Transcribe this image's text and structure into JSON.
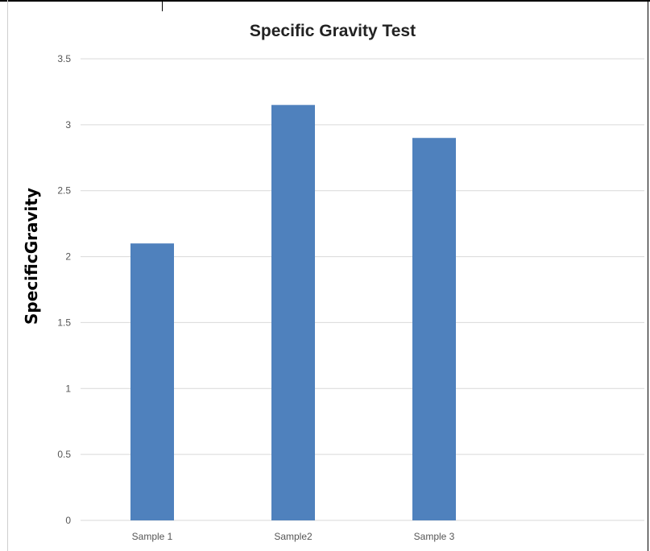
{
  "chart_data": {
    "type": "bar",
    "title": "Specific Gravity Test",
    "xlabel": "",
    "ylabel": "SpecificGravity",
    "categories": [
      "Sample 1",
      "Sample2",
      "Sample 3"
    ],
    "values": [
      2.1,
      3.15,
      2.9
    ],
    "ylim": [
      0,
      3.5
    ],
    "yticks": [
      "0",
      "0.5",
      "1",
      "1.5",
      "2",
      "2.5",
      "3",
      "3.5"
    ],
    "grid": true,
    "legend": "none",
    "bar_color": "#4f81bd",
    "grid_color": "#d9d9d9"
  }
}
